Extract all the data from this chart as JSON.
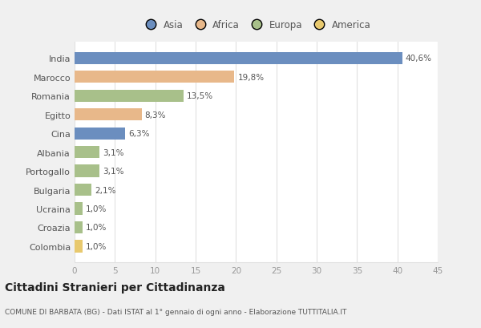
{
  "categories": [
    "India",
    "Marocco",
    "Romania",
    "Egitto",
    "Cina",
    "Albania",
    "Portogallo",
    "Bulgaria",
    "Ucraina",
    "Croazia",
    "Colombia"
  ],
  "values": [
    40.6,
    19.8,
    13.5,
    8.3,
    6.3,
    3.1,
    3.1,
    2.1,
    1.0,
    1.0,
    1.0
  ],
  "labels": [
    "40,6%",
    "19,8%",
    "13,5%",
    "8,3%",
    "6,3%",
    "3,1%",
    "3,1%",
    "2,1%",
    "1,0%",
    "1,0%",
    "1,0%"
  ],
  "colors": [
    "#6b8ebf",
    "#e8b88a",
    "#a8c08a",
    "#e8b88a",
    "#6b8ebf",
    "#a8c08a",
    "#a8c08a",
    "#a8c08a",
    "#a8c08a",
    "#a8c08a",
    "#e8c96e"
  ],
  "legend_labels": [
    "Asia",
    "Africa",
    "Europa",
    "America"
  ],
  "legend_colors": [
    "#6b8ebf",
    "#e8b88a",
    "#a8c08a",
    "#e8c96e"
  ],
  "xlim": [
    0,
    45
  ],
  "xticks": [
    0,
    5,
    10,
    15,
    20,
    25,
    30,
    35,
    40,
    45
  ],
  "title": "Cittadini Stranieri per Cittadinanza",
  "subtitle": "COMUNE DI BARBATA (BG) - Dati ISTAT al 1° gennaio di ogni anno - Elaborazione TUTTITALIA.IT",
  "fig_bg": "#f0f0f0",
  "plot_bg": "#ffffff",
  "grid_color": "#e0e0e0",
  "label_color": "#555555",
  "tick_color": "#999999"
}
